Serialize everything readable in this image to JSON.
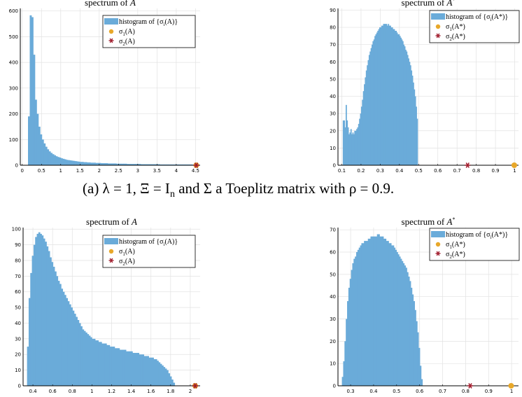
{
  "captions": {
    "a": "(a) λ = 1, Ξ = I",
    "a_sub": "n",
    "a_rest": " and Σ a Toeplitz matrix with ρ = 0.9."
  },
  "colors": {
    "bar": "#6aabd9",
    "sigma1": "#e8a82a",
    "sigma2": "#a11d2d"
  },
  "chart_data": [
    {
      "type": "bar",
      "title": "spectrum of A",
      "xlim": [
        -0.05,
        4.62
      ],
      "ylim": [
        0,
        610
      ],
      "xticks": [
        0,
        0.5,
        1,
        1.5,
        2,
        2.5,
        3,
        3.5,
        4,
        4.5
      ],
      "xtick_labels": [
        "0",
        "0.5",
        "1",
        "1.5",
        "2",
        "2.5",
        "3",
        "3.5",
        "4",
        "4.5"
      ],
      "yticks": [
        0,
        100,
        200,
        300,
        400,
        500,
        600
      ],
      "ytick_labels": [
        "0",
        "100",
        "200",
        "300",
        "400",
        "500",
        "600"
      ],
      "grid": true,
      "legend_position": "top-right",
      "bin_start": 0.15,
      "bin_width": 0.045,
      "counts": [
        190,
        583,
        576,
        430,
        255,
        200,
        150,
        120,
        100,
        85,
        72,
        62,
        54,
        48,
        43,
        39,
        35,
        32,
        30,
        27,
        25,
        23,
        21,
        20,
        19,
        18,
        17,
        16,
        15,
        14,
        13,
        13,
        12,
        12,
        11,
        11,
        10,
        10,
        10,
        9,
        9,
        9,
        8,
        8,
        8,
        8,
        7,
        7,
        7,
        7,
        7,
        6,
        6,
        6,
        6,
        6,
        6,
        5,
        5,
        5,
        5,
        5,
        5,
        5,
        5,
        4,
        4,
        4,
        4,
        4,
        4,
        4,
        4,
        4,
        4,
        4,
        3,
        3,
        3,
        3,
        3,
        3,
        3,
        3,
        3,
        3,
        3,
        3,
        3,
        3,
        3,
        3,
        3,
        3,
        3
      ],
      "sigma1": [
        4.52,
        0
      ],
      "sigma2": [
        4.52,
        0
      ],
      "legend": [
        "histogram of {σ_i(A)}",
        "σ_1(A)",
        "σ_2(A)"
      ]
    },
    {
      "type": "bar",
      "title": "spectrum of A*",
      "xlim": [
        0.08,
        1.02
      ],
      "ylim": [
        0,
        91
      ],
      "xticks": [
        0.1,
        0.2,
        0.3,
        0.4,
        0.5,
        0.6,
        0.7,
        0.8,
        0.9,
        1
      ],
      "xtick_labels": [
        "0.1",
        "0.2",
        "0.3",
        "0.4",
        "0.5",
        "0.6",
        "0.7",
        "0.8",
        "0.9",
        "1"
      ],
      "yticks": [
        0,
        10,
        20,
        30,
        40,
        50,
        60,
        70,
        80,
        90
      ],
      "ytick_labels": [
        "0",
        "10",
        "20",
        "30",
        "40",
        "50",
        "60",
        "70",
        "80",
        "90"
      ],
      "grid": true,
      "legend_position": "top-right",
      "bin_start": 0.105,
      "bin_width": 0.005,
      "counts": [
        26,
        26,
        22,
        35,
        26,
        22,
        18,
        19,
        21,
        18,
        19,
        18,
        20,
        20,
        21,
        22,
        24,
        27,
        30,
        34,
        38,
        43,
        47,
        51,
        55,
        58,
        61,
        64,
        66,
        68,
        70,
        72,
        73,
        75,
        76,
        77,
        78,
        79,
        80,
        80,
        81,
        81,
        82,
        82,
        82,
        82,
        81,
        82,
        81,
        81,
        80,
        80,
        79,
        79,
        78,
        78,
        77,
        76,
        76,
        75,
        74,
        73,
        72,
        70,
        69,
        67,
        66,
        64,
        62,
        60,
        58,
        55,
        52,
        48,
        44,
        40,
        34,
        27,
        0
      ],
      "sigma1": [
        0.998,
        0
      ],
      "sigma2": [
        0.755,
        0
      ],
      "legend": [
        "histogram of {σ_i(A*)}",
        "σ_1(A*)",
        "σ_2(A*)"
      ]
    },
    {
      "type": "bar",
      "title": "spectrum of A",
      "xlim": [
        0.3,
        2.1
      ],
      "ylim": [
        0,
        101
      ],
      "xticks": [
        0.4,
        0.6,
        0.8,
        1,
        1.2,
        1.4,
        1.6,
        1.8,
        2
      ],
      "xtick_labels": [
        "0.4",
        "0.6",
        "0.8",
        "1",
        "1.2",
        "1.4",
        "1.6",
        "1.8",
        "2"
      ],
      "yticks": [
        0,
        10,
        20,
        30,
        40,
        50,
        60,
        70,
        80,
        90,
        100
      ],
      "ytick_labels": [
        "0",
        "10",
        "20",
        "30",
        "40",
        "50",
        "60",
        "70",
        "80",
        "90",
        "100"
      ],
      "grid": true,
      "legend_position": "top-right",
      "bin_start": 0.34,
      "bin_width": 0.0165,
      "counts": [
        25,
        56,
        72,
        83,
        90,
        95,
        97,
        98,
        97,
        96,
        94,
        92,
        89,
        86,
        82,
        79,
        76,
        73,
        70,
        67,
        65,
        62,
        60,
        58,
        56,
        54,
        52,
        50,
        48,
        46,
        44,
        42,
        40,
        38,
        36,
        35,
        34,
        33,
        32,
        31,
        30,
        30,
        29,
        29,
        28,
        28,
        27,
        27,
        27,
        26,
        26,
        25,
        25,
        25,
        24,
        24,
        24,
        23,
        23,
        23,
        23,
        22,
        22,
        22,
        22,
        21,
        21,
        21,
        21,
        20,
        20,
        20,
        19,
        19,
        19,
        18,
        18,
        18,
        17,
        17,
        16,
        15,
        14,
        13,
        12,
        11,
        10,
        8,
        6,
        4,
        2,
        0
      ],
      "sigma1": [
        2.05,
        0
      ],
      "sigma2": [
        2.05,
        0
      ],
      "legend": [
        "histogram of {σ_i(A)}",
        "σ_1(A)",
        "σ_2(A)"
      ]
    },
    {
      "type": "bar",
      "title": "spectrum of A*",
      "xlim": [
        0.245,
        1.03
      ],
      "ylim": [
        0,
        71
      ],
      "xticks": [
        0.3,
        0.4,
        0.5,
        0.6,
        0.7,
        0.8,
        0.9,
        1
      ],
      "xtick_labels": [
        "0.3",
        "0.4",
        "0.5",
        "0.6",
        "0.7",
        "0.8",
        "0.9",
        "1"
      ],
      "yticks": [
        0,
        10,
        20,
        30,
        40,
        50,
        60,
        70
      ],
      "ytick_labels": [
        "0",
        "10",
        "20",
        "30",
        "40",
        "50",
        "60",
        "70"
      ],
      "grid": true,
      "legend_position": "top-right",
      "bin_start": 0.262,
      "bin_width": 0.00565,
      "counts": [
        4,
        11,
        20,
        30,
        38,
        44,
        48,
        52,
        55,
        57,
        58,
        60,
        61,
        62,
        63,
        64,
        64,
        65,
        65,
        65,
        66,
        66,
        67,
        67,
        67,
        67,
        67,
        68,
        68,
        67,
        67,
        67,
        66,
        66,
        65,
        65,
        64,
        64,
        63,
        63,
        62,
        61,
        60,
        59,
        58,
        57,
        56,
        55,
        54,
        53,
        51,
        49,
        47,
        44,
        41,
        38,
        34,
        29,
        24,
        17,
        9,
        3
      ],
      "sigma1": [
        0.998,
        0
      ],
      "sigma2": [
        0.82,
        0
      ],
      "legend": [
        "histogram of {σ_i(A*)}",
        "σ_1(A*)",
        "σ_2(A*)"
      ]
    }
  ]
}
